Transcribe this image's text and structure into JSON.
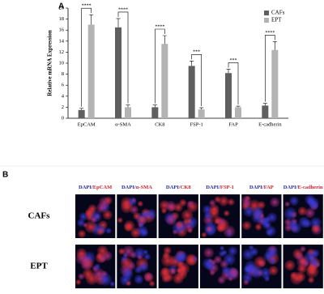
{
  "chart_data": {
    "type": "bar",
    "panel_label": "A",
    "y_label": "Relative mRNA Expression",
    "categories": [
      "EpCAM",
      "α-SMA",
      "CK8",
      "FSP-1",
      "FAP",
      "E-cadherin"
    ],
    "series": [
      {
        "name": "CAFs",
        "color": "#5f5f5f",
        "values": [
          1.5,
          16.5,
          2.0,
          9.5,
          8.2,
          2.3
        ],
        "errors": [
          0.3,
          1.6,
          0.4,
          0.9,
          0.7,
          0.4
        ]
      },
      {
        "name": "EPT",
        "color": "#b3b3b3",
        "values": [
          17,
          2.0,
          13.5,
          1.6,
          2.0,
          12.4
        ],
        "errors": [
          1.8,
          0.4,
          1.5,
          0.3,
          0.2,
          1.5
        ]
      }
    ],
    "significance": [
      "****",
      "****",
      "****",
      "***",
      "***",
      "****"
    ],
    "ylim": [
      0,
      20
    ],
    "yticks": [
      0,
      2,
      4,
      6,
      8,
      10,
      12,
      14,
      16,
      18,
      20
    ],
    "legend": "top-right"
  },
  "panel_b": {
    "panel_label": "B",
    "columns": [
      {
        "prefix": "DAPI/",
        "marker": "EpCAM"
      },
      {
        "prefix": "DAPI/",
        "marker": "α-SMA"
      },
      {
        "prefix": "DAPI/",
        "marker": "CK8"
      },
      {
        "prefix": "DAPI/",
        "marker": "FSP-1"
      },
      {
        "prefix": "DAPI/",
        "marker": "FAP"
      },
      {
        "prefix": "DAPI/",
        "marker": "E-cadherin"
      }
    ],
    "rows": [
      "CAFs",
      "EPT"
    ]
  }
}
